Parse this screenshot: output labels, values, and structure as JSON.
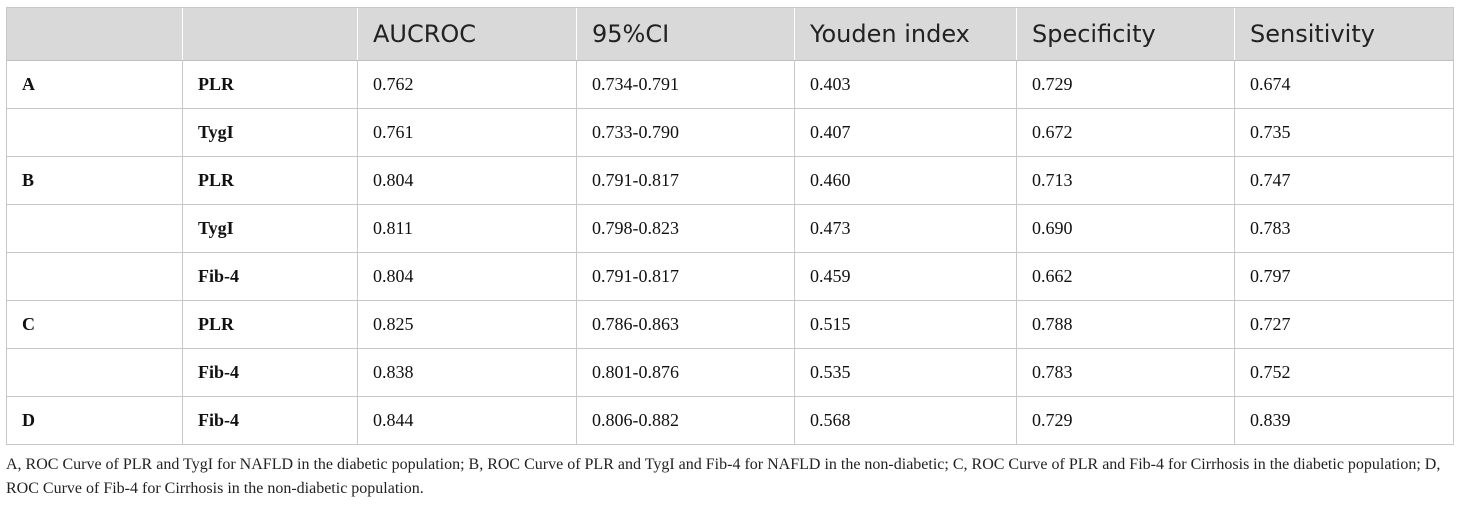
{
  "table": {
    "headers": [
      "",
      "",
      "AUCROC",
      "95%CI",
      "Youden index",
      "Specificity",
      "Sensitivity"
    ],
    "rows": [
      [
        "A",
        "PLR",
        "0.762",
        "0.734-0.791",
        "0.403",
        "0.729",
        "0.674"
      ],
      [
        "",
        "TygI",
        "0.761",
        "0.733-0.790",
        "0.407",
        "0.672",
        "0.735"
      ],
      [
        "B",
        "PLR",
        "0.804",
        "0.791-0.817",
        "0.460",
        "0.713",
        "0.747"
      ],
      [
        "",
        "TygI",
        "0.811",
        "0.798-0.823",
        "0.473",
        "0.690",
        "0.783"
      ],
      [
        "",
        "Fib-4",
        "0.804",
        "0.791-0.817",
        "0.459",
        "0.662",
        "0.797"
      ],
      [
        "C",
        "PLR",
        "0.825",
        "0.786-0.863",
        "0.515",
        "0.788",
        "0.727"
      ],
      [
        "",
        "Fib-4",
        "0.838",
        "0.801-0.876",
        "0.535",
        "0.783",
        "0.752"
      ],
      [
        "D",
        "Fib-4",
        "0.844",
        "0.806-0.882",
        "0.568",
        "0.729",
        "0.839"
      ]
    ]
  },
  "footnote": "A, ROC Curve of PLR and TygI for NAFLD in the diabetic population; B, ROC Curve of PLR and TygI and Fib-4 for NAFLD in the non-diabetic; C, ROC Curve of PLR and Fib-4 for Cirrhosis in the diabetic population; D, ROC Curve of Fib-4 for Cirrhosis in the non-diabetic population."
}
